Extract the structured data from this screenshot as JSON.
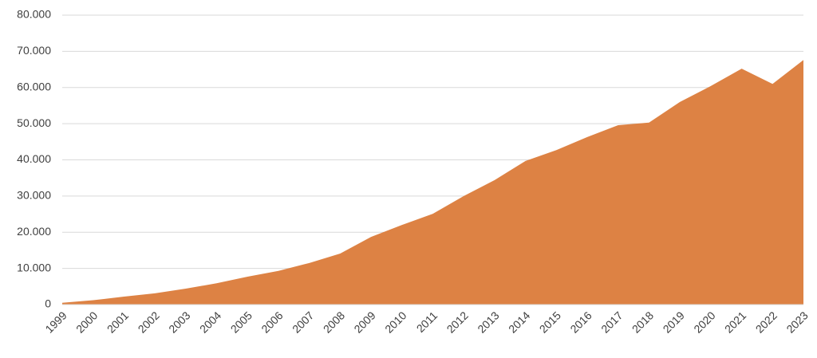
{
  "chart_data": {
    "type": "area",
    "categories": [
      "1999",
      "2000",
      "2001",
      "2002",
      "2003",
      "2004",
      "2005",
      "2006",
      "2007",
      "2008",
      "2009",
      "2010",
      "2011",
      "2012",
      "2013",
      "2014",
      "2015",
      "2016",
      "2017",
      "2018",
      "2019",
      "2020",
      "2021",
      "2022",
      "2023"
    ],
    "values": [
      500,
      1200,
      2200,
      3100,
      4400,
      5900,
      7700,
      9300,
      11500,
      14100,
      18700,
      22000,
      25100,
      30000,
      34400,
      39700,
      42700,
      46300,
      49600,
      50300,
      56000,
      60400,
      65200,
      61000,
      67600
    ],
    "color": "#dd8244",
    "ylim": [
      0,
      80000
    ],
    "yticks": [
      0,
      {
        "value": 10000,
        "label": "10.000"
      },
      {
        "value": 20000,
        "label": "20.000"
      },
      {
        "value": 30000,
        "label": "30.000"
      },
      {
        "value": 40000,
        "label": "40.000"
      },
      {
        "value": 50000,
        "label": "50.000"
      },
      {
        "value": 60000,
        "label": "60.000"
      },
      {
        "value": 70000,
        "label": "70.000"
      },
      {
        "value": 80000,
        "label": "80.000"
      }
    ],
    "grid": true
  }
}
